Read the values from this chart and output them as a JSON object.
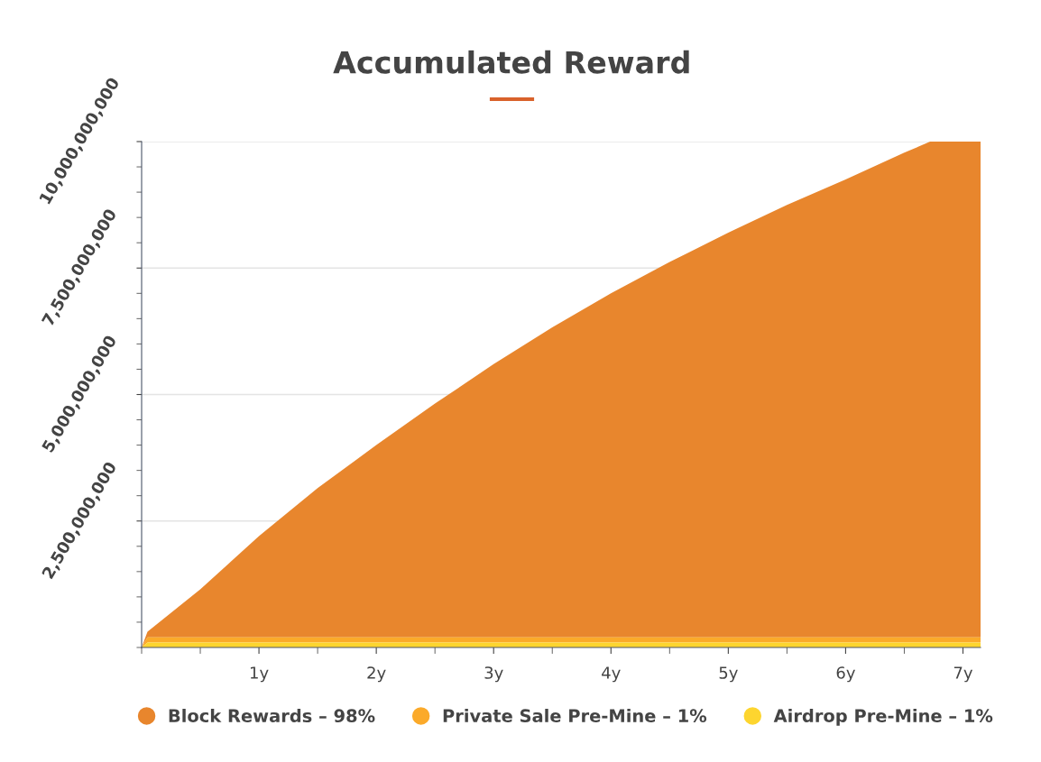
{
  "chart_data": {
    "type": "area",
    "title": "Accumulated Reward",
    "stacked": true,
    "x": [
      0,
      0.05,
      0.5,
      1,
      1.5,
      2,
      2.5,
      3,
      3.5,
      4,
      4.5,
      5,
      5.5,
      6,
      6.5,
      6.72,
      7.15
    ],
    "series": [
      {
        "name": "Airdrop Pre-Mine – 1%",
        "color": "#fdd52f",
        "values": [
          0,
          100000000,
          100000000,
          100000000,
          100000000,
          100000000,
          100000000,
          100000000,
          100000000,
          100000000,
          100000000,
          100000000,
          100000000,
          100000000,
          100000000,
          100000000,
          100000000
        ]
      },
      {
        "name": "Private Sale Pre-Mine – 1%",
        "color": "#fbaa2a",
        "values": [
          0,
          100000000,
          100000000,
          100000000,
          100000000,
          100000000,
          100000000,
          100000000,
          100000000,
          100000000,
          100000000,
          100000000,
          100000000,
          100000000,
          100000000,
          100000000,
          100000000
        ]
      },
      {
        "name": "Block Rewards – 98%",
        "color": "#e8862d",
        "values": [
          0,
          110000000,
          950000000,
          2000000000,
          2950000000,
          3800000000,
          4620000000,
          5400000000,
          6130000000,
          6800000000,
          7420000000,
          8000000000,
          8550000000,
          9050000000,
          9580000000,
          9800000000,
          9800000000
        ]
      }
    ],
    "xlim": [
      0,
      7.15
    ],
    "xticks": [
      {
        "value": 0,
        "label": null
      },
      {
        "value": 0.5,
        "label": null
      },
      {
        "value": 1,
        "label": "1y"
      },
      {
        "value": 1.5,
        "label": null
      },
      {
        "value": 2,
        "label": "2y"
      },
      {
        "value": 2.5,
        "label": null
      },
      {
        "value": 3,
        "label": "3y"
      },
      {
        "value": 3.5,
        "label": null
      },
      {
        "value": 4,
        "label": "4y"
      },
      {
        "value": 4.5,
        "label": null
      },
      {
        "value": 5,
        "label": "5y"
      },
      {
        "value": 5.5,
        "label": null
      },
      {
        "value": 6,
        "label": "6y"
      },
      {
        "value": 6.5,
        "label": null
      },
      {
        "value": 7,
        "label": "7y"
      }
    ],
    "ylim": [
      0,
      10000000000
    ],
    "yticks": [
      {
        "value": 0,
        "label": null
      },
      {
        "value": 500000000,
        "label": null
      },
      {
        "value": 1000000000,
        "label": null
      },
      {
        "value": 1500000000,
        "label": null
      },
      {
        "value": 2000000000,
        "label": null
      },
      {
        "value": 2500000000,
        "label": "2,500,000,000"
      },
      {
        "value": 3000000000,
        "label": null
      },
      {
        "value": 3500000000,
        "label": null
      },
      {
        "value": 4000000000,
        "label": null
      },
      {
        "value": 4500000000,
        "label": null
      },
      {
        "value": 5000000000,
        "label": "5,000,000,000"
      },
      {
        "value": 5500000000,
        "label": null
      },
      {
        "value": 6000000000,
        "label": null
      },
      {
        "value": 6500000000,
        "label": null
      },
      {
        "value": 7000000000,
        "label": null
      },
      {
        "value": 7500000000,
        "label": "7,500,000,000"
      },
      {
        "value": 8000000000,
        "label": null
      },
      {
        "value": 8500000000,
        "label": null
      },
      {
        "value": 9000000000,
        "label": null
      },
      {
        "value": 9500000000,
        "label": null
      },
      {
        "value": 10000000000,
        "label": "10,000,000,000"
      }
    ],
    "grid": "y",
    "legend": "bottom"
  }
}
